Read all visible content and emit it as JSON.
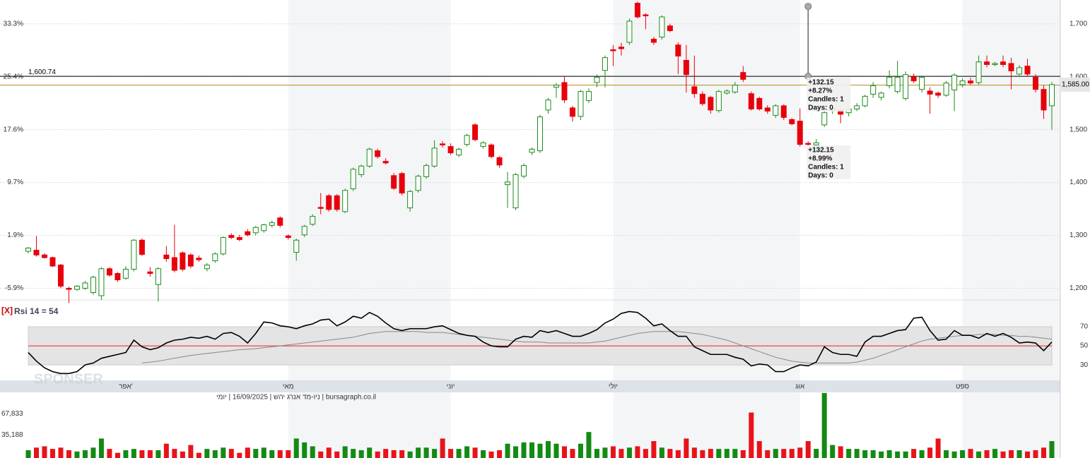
{
  "chart_data": {
    "type": "candlestick",
    "caption": "bursagraph.co.il | ניו-מד אנרג יהש | 16/09/2025 | יומי",
    "ylim": [
      1178,
      1745
    ],
    "yticks": [
      {
        "value": 1700,
        "label": "1,700"
      },
      {
        "value": 1600,
        "label": "1,600"
      },
      {
        "value": 1500,
        "label": "1,500"
      },
      {
        "value": 1400,
        "label": "1,400"
      },
      {
        "value": 1300,
        "label": "1,300"
      },
      {
        "value": 1200,
        "label": "1,200"
      }
    ],
    "pct_ticks": [
      {
        "value": 1700,
        "label": "33.3%"
      },
      {
        "value": 1600,
        "label": "25.4%"
      },
      {
        "value": 1500,
        "label": "17.6%"
      },
      {
        "value": 1400,
        "label": "9.7%"
      },
      {
        "value": 1300,
        "label": "1.9%"
      },
      {
        "value": 1200,
        "label": "-5.9%"
      }
    ],
    "xticks": [
      {
        "value": 12,
        "label": "אפר'"
      },
      {
        "value": 32,
        "label": "מאי"
      },
      {
        "value": 52,
        "label": "יוני"
      },
      {
        "value": 72,
        "label": "יולי"
      },
      {
        "value": 95,
        "label": "אוג"
      },
      {
        "value": 115,
        "label": "ספט"
      }
    ],
    "up_color": "#1a8c1a",
    "down_color": "#e8000b",
    "level": 1600.74,
    "level_label": "1,600.74",
    "level2": 1584,
    "last_price": 1585,
    "last_price_label": "1,585.00",
    "measure": {
      "index": 96,
      "from": 1600.74,
      "to": 1732.89,
      "upper": [
        "+132.15",
        "+8.27%",
        "Candles: 1",
        "Days: 0"
      ],
      "lower": [
        "+132.15",
        "+8.99%",
        "Candles: 1",
        "Days: 0"
      ]
    },
    "ohlc": [
      [
        1270,
        1278,
        1266,
        1276
      ],
      [
        1272,
        1299,
        1260,
        1263
      ],
      [
        1263,
        1266,
        1256,
        1258
      ],
      [
        1258,
        1260,
        1240,
        1242
      ],
      [
        1244,
        1246,
        1200,
        1204
      ],
      [
        1200,
        1203,
        1172,
        1198
      ],
      [
        1198,
        1206,
        1195,
        1204
      ],
      [
        1200,
        1214,
        1197,
        1210
      ],
      [
        1192,
        1224,
        1188,
        1221
      ],
      [
        1186,
        1240,
        1178,
        1237
      ],
      [
        1237,
        1240,
        1222,
        1225
      ],
      [
        1228,
        1231,
        1212,
        1216
      ],
      [
        1219,
        1242,
        1216,
        1236
      ],
      [
        1236,
        1293,
        1232,
        1291
      ],
      [
        1291,
        1294,
        1261,
        1264
      ],
      [
        1231,
        1240,
        1222,
        1228
      ],
      [
        1207,
        1240,
        1175,
        1237
      ],
      [
        1263,
        1280,
        1250,
        1256
      ],
      [
        1258,
        1320,
        1230,
        1234
      ],
      [
        1267,
        1270,
        1232,
        1236
      ],
      [
        1263,
        1266,
        1238,
        1242
      ],
      [
        1257,
        1262,
        1250,
        1254
      ],
      [
        1237,
        1248,
        1232,
        1244
      ],
      [
        1252,
        1268,
        1248,
        1265
      ],
      [
        1265,
        1298,
        1262,
        1296
      ],
      [
        1300,
        1304,
        1293,
        1296
      ],
      [
        1296,
        1301,
        1289,
        1292
      ],
      [
        1307,
        1312,
        1298,
        1301
      ],
      [
        1305,
        1318,
        1300,
        1315
      ],
      [
        1309,
        1322,
        1305,
        1320
      ],
      [
        1319,
        1328,
        1315,
        1324
      ],
      [
        1333,
        1336,
        1315,
        1319
      ],
      [
        1299,
        1302,
        1292,
        1296
      ],
      [
        1268,
        1294,
        1252,
        1291
      ],
      [
        1301,
        1320,
        1297,
        1317
      ],
      [
        1321,
        1340,
        1318,
        1336
      ],
      [
        1353,
        1380,
        1340,
        1351
      ],
      [
        1375,
        1378,
        1345,
        1349
      ],
      [
        1375,
        1378,
        1345,
        1349
      ],
      [
        1345,
        1388,
        1342,
        1385
      ],
      [
        1388,
        1428,
        1384,
        1425
      ],
      [
        1415,
        1434,
        1410,
        1431
      ],
      [
        1431,
        1466,
        1428,
        1463
      ],
      [
        1460,
        1464,
        1445,
        1449
      ],
      [
        1440,
        1446,
        1434,
        1437
      ],
      [
        1413,
        1418,
        1386,
        1389
      ],
      [
        1417,
        1420,
        1376,
        1380
      ],
      [
        1352,
        1386,
        1345,
        1383
      ],
      [
        1385,
        1415,
        1381,
        1412
      ],
      [
        1411,
        1436,
        1407,
        1432
      ],
      [
        1431,
        1480,
        1428,
        1465
      ],
      [
        1473,
        1478,
        1466,
        1471
      ],
      [
        1468,
        1474,
        1452,
        1456
      ],
      [
        1452,
        1466,
        1448,
        1463
      ],
      [
        1472,
        1492,
        1468,
        1489
      ],
      [
        1509,
        1512,
        1478,
        1481
      ],
      [
        1468,
        1478,
        1464,
        1475
      ],
      [
        1471,
        1474,
        1446,
        1449
      ],
      [
        1447,
        1450,
        1428,
        1433
      ],
      [
        1396,
        1420,
        1352,
        1401
      ],
      [
        1352,
        1418,
        1348,
        1415
      ],
      [
        1412,
        1436,
        1408,
        1432
      ],
      [
        1457,
        1466,
        1452,
        1463
      ],
      [
        1460,
        1528,
        1456,
        1524
      ],
      [
        1537,
        1560,
        1530,
        1556
      ],
      [
        1580,
        1588,
        1560,
        1584
      ],
      [
        1589,
        1600,
        1550,
        1556
      ],
      [
        1541,
        1545,
        1515,
        1525
      ],
      [
        1525,
        1575,
        1518,
        1572
      ],
      [
        1555,
        1578,
        1550,
        1572
      ],
      [
        1589,
        1604,
        1580,
        1599
      ],
      [
        1612,
        1640,
        1580,
        1636
      ],
      [
        1651,
        1660,
        1620,
        1649
      ],
      [
        1656,
        1664,
        1640,
        1653
      ],
      [
        1665,
        1710,
        1660,
        1705
      ],
      [
        1739,
        1742,
        1710,
        1713
      ],
      [
        1717,
        1720,
        1690,
        1715
      ],
      [
        1671,
        1675,
        1660,
        1665
      ],
      [
        1675,
        1716,
        1670,
        1713
      ],
      [
        1696,
        1700,
        1684,
        1687
      ],
      [
        1660,
        1665,
        1605,
        1639
      ],
      [
        1631,
        1660,
        1570,
        1604
      ],
      [
        1581,
        1640,
        1560,
        1568
      ],
      [
        1567,
        1572,
        1545,
        1549
      ],
      [
        1561,
        1564,
        1530,
        1537
      ],
      [
        1536,
        1575,
        1532,
        1572
      ],
      [
        1569,
        1576,
        1566,
        1573
      ],
      [
        1571,
        1590,
        1568,
        1584
      ],
      [
        1608,
        1620,
        1590,
        1595
      ],
      [
        1568,
        1572,
        1536,
        1539
      ],
      [
        1559,
        1562,
        1536,
        1539
      ],
      [
        1541,
        1546,
        1530,
        1535
      ],
      [
        1527,
        1548,
        1522,
        1545
      ],
      [
        1545,
        1548,
        1518,
        1523
      ],
      [
        1519,
        1522,
        1508,
        1511
      ],
      [
        1516,
        1540,
        1468,
        1472
      ],
      [
        1474,
        1478,
        1470,
        1473
      ],
      [
        1471,
        1482,
        1460,
        1475
      ],
      [
        1509,
        1540,
        1505,
        1532
      ],
      [
        1536,
        1542,
        1530,
        1540
      ],
      [
        1537,
        1540,
        1512,
        1529
      ],
      [
        1532,
        1541,
        1525,
        1539
      ],
      [
        1539,
        1550,
        1535,
        1545
      ],
      [
        1545,
        1566,
        1542,
        1563
      ],
      [
        1567,
        1590,
        1560,
        1583
      ],
      [
        1561,
        1572,
        1555,
        1569
      ],
      [
        1583,
        1612,
        1578,
        1599
      ],
      [
        1572,
        1630,
        1568,
        1599
      ],
      [
        1559,
        1610,
        1555,
        1604
      ],
      [
        1600,
        1606,
        1588,
        1592
      ],
      [
        1576,
        1602,
        1570,
        1599
      ],
      [
        1573,
        1580,
        1530,
        1567
      ],
      [
        1569,
        1572,
        1560,
        1565
      ],
      [
        1565,
        1592,
        1562,
        1588
      ],
      [
        1575,
        1606,
        1535,
        1603
      ],
      [
        1585,
        1597,
        1580,
        1592
      ],
      [
        1592,
        1598,
        1585,
        1588
      ],
      [
        1589,
        1640,
        1585,
        1628
      ],
      [
        1628,
        1640,
        1618,
        1623
      ],
      [
        1623,
        1628,
        1620,
        1625
      ],
      [
        1628,
        1640,
        1618,
        1623
      ],
      [
        1625,
        1636,
        1576,
        1611
      ],
      [
        1605,
        1622,
        1600,
        1617
      ],
      [
        1620,
        1634,
        1600,
        1605
      ],
      [
        1599,
        1605,
        1570,
        1576
      ],
      [
        1576,
        1584,
        1520,
        1537
      ],
      [
        1545,
        1590,
        1500,
        1585
      ]
    ],
    "rsi": {
      "label": "Rsi 14 = 54",
      "close_label": "[X]",
      "ylim": [
        19,
        90
      ],
      "yticks": [
        70,
        50,
        30
      ],
      "band": [
        30,
        70
      ],
      "mid": 50,
      "values": [
        43,
        34,
        27,
        23,
        21,
        21,
        23,
        30,
        32,
        37,
        39,
        41,
        43,
        56,
        49,
        46,
        48,
        53,
        56,
        57,
        59,
        58,
        60,
        57,
        63,
        64,
        60,
        53,
        63,
        75,
        74,
        71,
        70,
        68,
        71,
        73,
        77,
        78,
        71,
        75,
        81,
        79,
        85,
        81,
        74,
        68,
        66,
        68,
        68,
        68,
        70,
        71,
        67,
        63,
        61,
        60,
        54,
        50,
        49,
        49,
        57,
        60,
        59,
        66,
        64,
        66,
        63,
        60,
        60,
        63,
        67,
        74,
        78,
        84,
        86,
        85,
        79,
        71,
        73,
        66,
        60,
        60,
        49,
        45,
        41,
        41,
        41,
        38,
        36,
        29,
        31,
        30,
        23,
        23,
        27,
        30,
        29,
        33,
        49,
        43,
        41,
        41,
        39,
        54,
        60,
        60,
        63,
        66,
        67,
        79,
        80,
        66,
        56,
        57,
        66,
        61,
        61,
        58,
        63,
        60,
        63,
        59,
        53,
        54,
        53,
        45,
        54
      ],
      "ma": [
        null,
        null,
        null,
        null,
        null,
        null,
        null,
        null,
        null,
        null,
        null,
        null,
        null,
        null,
        32,
        33,
        34,
        35.5,
        37,
        38.5,
        40,
        41,
        42,
        43,
        44,
        45,
        46,
        46.5,
        47,
        48,
        49,
        50,
        51,
        52,
        53,
        54,
        55,
        56,
        57,
        58,
        59,
        61,
        63,
        64,
        65,
        65,
        65,
        65,
        65,
        64,
        64,
        64,
        63,
        62,
        61,
        60,
        59,
        58,
        57,
        56,
        55,
        54,
        54,
        54,
        53,
        53,
        53,
        53,
        53,
        53,
        54,
        55,
        57,
        59,
        61,
        63,
        64,
        65,
        65,
        65,
        65,
        64,
        63,
        62,
        60,
        58,
        56,
        53,
        50,
        47,
        44,
        41,
        38,
        36,
        34,
        33,
        32,
        32,
        32,
        32,
        32,
        32,
        33,
        35,
        37,
        40,
        43,
        46,
        49,
        52,
        55,
        57,
        58,
        59,
        60,
        61,
        61,
        62,
        62,
        62,
        61,
        61,
        60,
        60,
        59,
        58,
        57
      ]
    },
    "volume": {
      "ylim": [
        0,
        101000
      ],
      "yticks": [
        {
          "value": 67833,
          "label": "67,833"
        },
        {
          "value": 35188,
          "label": "35,188"
        }
      ],
      "values": [
        12000,
        16000,
        18000,
        14000,
        16000,
        12000,
        10000,
        12000,
        16000,
        30000,
        14000,
        8000,
        12000,
        14000,
        12000,
        12000,
        12000,
        22000,
        14000,
        10000,
        20000,
        8000,
        14000,
        12000,
        16000,
        14000,
        8000,
        16000,
        14000,
        16000,
        12000,
        12000,
        12000,
        30000,
        24000,
        18000,
        10000,
        16000,
        10000,
        18000,
        14000,
        12000,
        16000,
        10000,
        14000,
        12000,
        12000,
        10000,
        16000,
        16000,
        14000,
        30000,
        14000,
        14000,
        18000,
        16000,
        12000,
        10000,
        12000,
        22000,
        18000,
        24000,
        24000,
        22000,
        26000,
        22000,
        18000,
        14000,
        22000,
        40000,
        14000,
        16000,
        18000,
        14000,
        16000,
        18000,
        14000,
        26000,
        16000,
        14000,
        12000,
        30000,
        16000,
        12000,
        14000,
        14000,
        14000,
        14000,
        12000,
        70000,
        26000,
        12000,
        14000,
        14000,
        14000,
        16000,
        26000,
        14000,
        100000,
        20000,
        18000,
        14000,
        14000,
        12000,
        12000,
        10000,
        12000,
        10000,
        10000,
        14000,
        12000,
        16000,
        30000,
        12000,
        10000,
        12000,
        14000,
        10000,
        12000,
        14000,
        10000,
        12000,
        12000,
        10000,
        12000,
        16000,
        26000
      ]
    },
    "watermark": "SPONSER"
  }
}
